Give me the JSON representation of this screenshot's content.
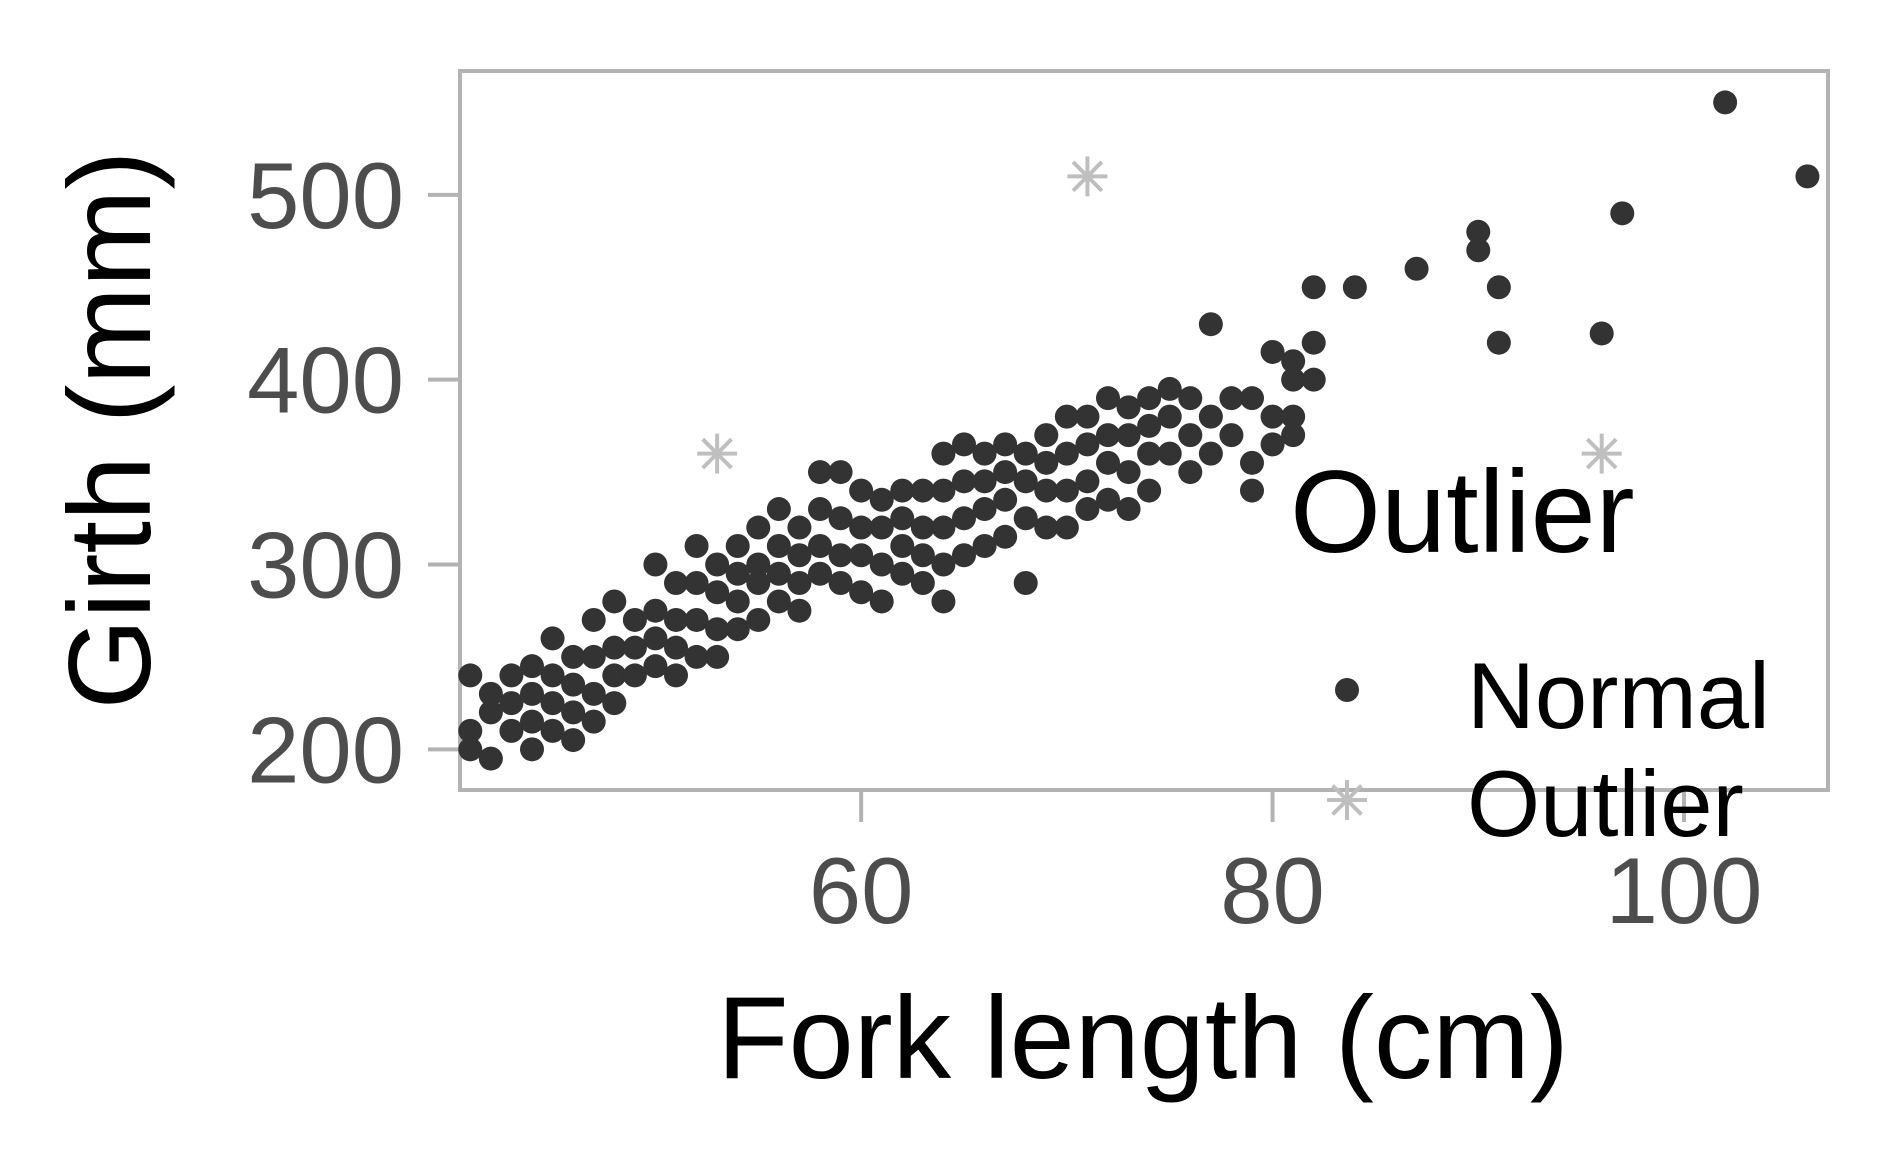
{
  "chart_data": {
    "type": "scatter",
    "xlabel": "Fork length (cm)",
    "ylabel": "Girth (mm)",
    "xlim": [
      40.5,
      107
    ],
    "ylim": [
      178,
      567
    ],
    "xticks": [
      60,
      80,
      100
    ],
    "yticks": [
      200,
      300,
      400,
      500
    ],
    "xtick_labels": [
      "60",
      "80",
      "100"
    ],
    "ytick_labels": [
      "200",
      "300",
      "400",
      "500"
    ],
    "grid": false,
    "legend": {
      "title": "Outlier",
      "position": "right",
      "entries": [
        {
          "label": "Normal",
          "shape": "dot",
          "color": "#333333"
        },
        {
          "label": "Outlier",
          "shape": "asterisk",
          "color": "#bfbfbf"
        }
      ]
    },
    "series": [
      {
        "name": "Normal",
        "color": "#333333",
        "shape": "dot",
        "points": [
          [
            41,
            240
          ],
          [
            41,
            210
          ],
          [
            41,
            200
          ],
          [
            42,
            230
          ],
          [
            42,
            220
          ],
          [
            42,
            195
          ],
          [
            43,
            240
          ],
          [
            43,
            225
          ],
          [
            43,
            210
          ],
          [
            44,
            245
          ],
          [
            44,
            230
          ],
          [
            44,
            215
          ],
          [
            44,
            200
          ],
          [
            45,
            260
          ],
          [
            45,
            240
          ],
          [
            45,
            225
          ],
          [
            45,
            210
          ],
          [
            46,
            250
          ],
          [
            46,
            235
          ],
          [
            46,
            220
          ],
          [
            46,
            205
          ],
          [
            47,
            270
          ],
          [
            47,
            250
          ],
          [
            47,
            230
          ],
          [
            47,
            215
          ],
          [
            48,
            280
          ],
          [
            48,
            255
          ],
          [
            48,
            240
          ],
          [
            48,
            225
          ],
          [
            49,
            270
          ],
          [
            49,
            255
          ],
          [
            49,
            240
          ],
          [
            50,
            300
          ],
          [
            50,
            275
          ],
          [
            50,
            260
          ],
          [
            50,
            245
          ],
          [
            51,
            290
          ],
          [
            51,
            270
          ],
          [
            51,
            255
          ],
          [
            51,
            240
          ],
          [
            52,
            310
          ],
          [
            52,
            290
          ],
          [
            52,
            270
          ],
          [
            52,
            250
          ],
          [
            53,
            300
          ],
          [
            53,
            285
          ],
          [
            53,
            265
          ],
          [
            53,
            250
          ],
          [
            54,
            310
          ],
          [
            54,
            295
          ],
          [
            54,
            280
          ],
          [
            54,
            265
          ],
          [
            55,
            320
          ],
          [
            55,
            300
          ],
          [
            55,
            290
          ],
          [
            55,
            270
          ],
          [
            56,
            330
          ],
          [
            56,
            310
          ],
          [
            56,
            295
          ],
          [
            56,
            280
          ],
          [
            57,
            320
          ],
          [
            57,
            305
          ],
          [
            57,
            290
          ],
          [
            57,
            275
          ],
          [
            58,
            350
          ],
          [
            58,
            330
          ],
          [
            58,
            310
          ],
          [
            58,
            295
          ],
          [
            59,
            350
          ],
          [
            59,
            325
          ],
          [
            59,
            305
          ],
          [
            59,
            290
          ],
          [
            60,
            340
          ],
          [
            60,
            320
          ],
          [
            60,
            305
          ],
          [
            60,
            285
          ],
          [
            61,
            335
          ],
          [
            61,
            320
          ],
          [
            61,
            300
          ],
          [
            61,
            280
          ],
          [
            62,
            340
          ],
          [
            62,
            325
          ],
          [
            62,
            310
          ],
          [
            62,
            295
          ],
          [
            63,
            340
          ],
          [
            63,
            320
          ],
          [
            63,
            305
          ],
          [
            63,
            290
          ],
          [
            64,
            360
          ],
          [
            64,
            340
          ],
          [
            64,
            320
          ],
          [
            64,
            300
          ],
          [
            64,
            280
          ],
          [
            65,
            365
          ],
          [
            65,
            345
          ],
          [
            65,
            325
          ],
          [
            65,
            305
          ],
          [
            66,
            360
          ],
          [
            66,
            345
          ],
          [
            66,
            330
          ],
          [
            66,
            310
          ],
          [
            67,
            365
          ],
          [
            67,
            350
          ],
          [
            67,
            335
          ],
          [
            67,
            315
          ],
          [
            68,
            360
          ],
          [
            68,
            345
          ],
          [
            68,
            325
          ],
          [
            68,
            290
          ],
          [
            69,
            370
          ],
          [
            69,
            355
          ],
          [
            69,
            340
          ],
          [
            69,
            320
          ],
          [
            70,
            380
          ],
          [
            70,
            360
          ],
          [
            70,
            340
          ],
          [
            70,
            320
          ],
          [
            71,
            380
          ],
          [
            71,
            365
          ],
          [
            71,
            345
          ],
          [
            71,
            330
          ],
          [
            72,
            390
          ],
          [
            72,
            370
          ],
          [
            72,
            355
          ],
          [
            72,
            335
          ],
          [
            73,
            385
          ],
          [
            73,
            370
          ],
          [
            73,
            350
          ],
          [
            73,
            330
          ],
          [
            74,
            390
          ],
          [
            74,
            375
          ],
          [
            74,
            360
          ],
          [
            74,
            340
          ],
          [
            75,
            395
          ],
          [
            75,
            380
          ],
          [
            75,
            360
          ],
          [
            76,
            390
          ],
          [
            76,
            370
          ],
          [
            76,
            350
          ],
          [
            77,
            430
          ],
          [
            77,
            380
          ],
          [
            77,
            360
          ],
          [
            78,
            390
          ],
          [
            78,
            370
          ],
          [
            79,
            390
          ],
          [
            79,
            355
          ],
          [
            79,
            340
          ],
          [
            80,
            415
          ],
          [
            80,
            380
          ],
          [
            80,
            365
          ],
          [
            81,
            410
          ],
          [
            81,
            400
          ],
          [
            81,
            380
          ],
          [
            81,
            370
          ],
          [
            82,
            450
          ],
          [
            82,
            420
          ],
          [
            82,
            400
          ],
          [
            84,
            450
          ],
          [
            87,
            460
          ],
          [
            90,
            480
          ],
          [
            90,
            470
          ],
          [
            91,
            450
          ],
          [
            91,
            420
          ],
          [
            96,
            425
          ],
          [
            97,
            490
          ],
          [
            102,
            550
          ],
          [
            106,
            510
          ]
        ]
      },
      {
        "name": "Outlier",
        "color": "#bfbfbf",
        "shape": "asterisk",
        "points": [
          [
            53,
            360
          ],
          [
            71,
            510
          ],
          [
            96,
            360
          ]
        ]
      }
    ]
  }
}
